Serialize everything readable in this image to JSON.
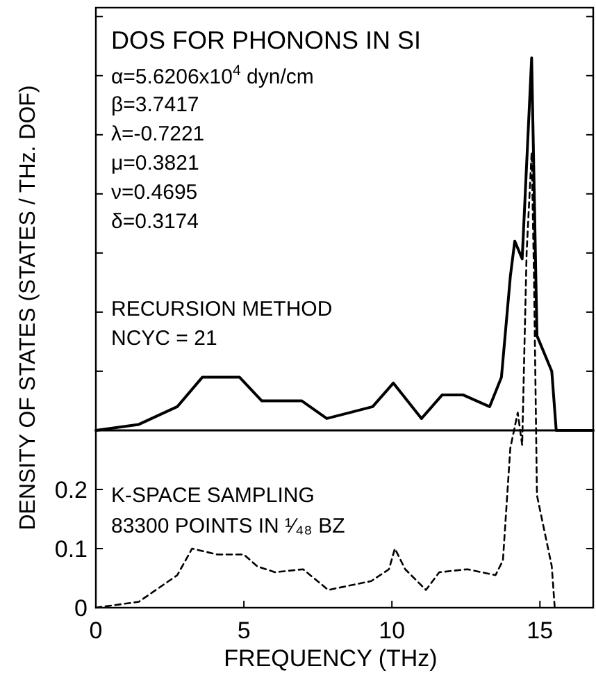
{
  "chart_data": {
    "type": "line",
    "title": "DOS FOR PHONONS IN SI",
    "xlabel": "FREQUENCY (THz)",
    "ylabel": "DENSITY OF STATES  (STATES / THz. DOF)",
    "annotations": [
      "α=5.6206x10$^{4}$ dyn/cm",
      "β=3.7417",
      "λ=-0.7221",
      "μ=0.3821",
      "ν=0.4695",
      "δ=0.3174",
      "RECURSION  METHOD",
      "NCYC = 21",
      "K-SPACE SAMPLING",
      "83300 POINTS IN ¹⁄₄₈ BZ"
    ],
    "xlim": [
      0,
      16.8
    ],
    "xticks": [
      0,
      5,
      10,
      15
    ],
    "ylim": [
      0,
      1.015
    ],
    "yticks": [
      0,
      0.1,
      0.2,
      {
        "value": 0.3,
        "label": null
      },
      {
        "value": 0.4,
        "label": null
      },
      {
        "value": 0.5,
        "label": null
      },
      {
        "value": 0.6,
        "label": null
      },
      {
        "value": 0.7,
        "label": null
      },
      {
        "value": 0.8,
        "label": null
      },
      {
        "value": 0.9,
        "label": null
      },
      {
        "value": 1.0,
        "label": null
      }
    ],
    "ref_lines": [
      {
        "axis": "y",
        "value": 0.3,
        "color": "#000000",
        "line_style": "solid"
      }
    ],
    "series": [
      {
        "color": "#000000",
        "line_style": "solid",
        "x": [
          0,
          1.45,
          2.75,
          3.6,
          4.85,
          5.6,
          6.95,
          7.8,
          9.35,
          10.05,
          11.0,
          11.7,
          12.4,
          13.3,
          13.7,
          14.0,
          14.15,
          14.4,
          14.72,
          14.9,
          15.4,
          15.55,
          16.8
        ],
        "values": [
          0.3,
          0.31,
          0.34,
          0.39,
          0.39,
          0.35,
          0.35,
          0.32,
          0.34,
          0.38,
          0.32,
          0.36,
          0.36,
          0.34,
          0.39,
          0.56,
          0.62,
          0.59,
          0.93,
          0.46,
          0.4,
          0.3,
          0.3
        ]
      },
      {
        "color": "#000000",
        "line_style": "dashed",
        "x": [
          0,
          1.45,
          2.75,
          3.25,
          4.1,
          5.0,
          5.45,
          6.05,
          7.0,
          7.85,
          9.3,
          9.9,
          10.1,
          10.45,
          11.15,
          11.6,
          12.55,
          13.5,
          13.75,
          14.0,
          14.25,
          14.4,
          14.55,
          14.72,
          14.8,
          14.9,
          15.4,
          15.5
        ],
        "values": [
          0,
          0.01,
          0.055,
          0.1,
          0.09,
          0.09,
          0.07,
          0.06,
          0.065,
          0.03,
          0.045,
          0.065,
          0.1,
          0.065,
          0.03,
          0.06,
          0.065,
          0.055,
          0.08,
          0.27,
          0.33,
          0.275,
          0.6,
          0.77,
          0.56,
          0.19,
          0.07,
          0
        ]
      }
    ]
  }
}
